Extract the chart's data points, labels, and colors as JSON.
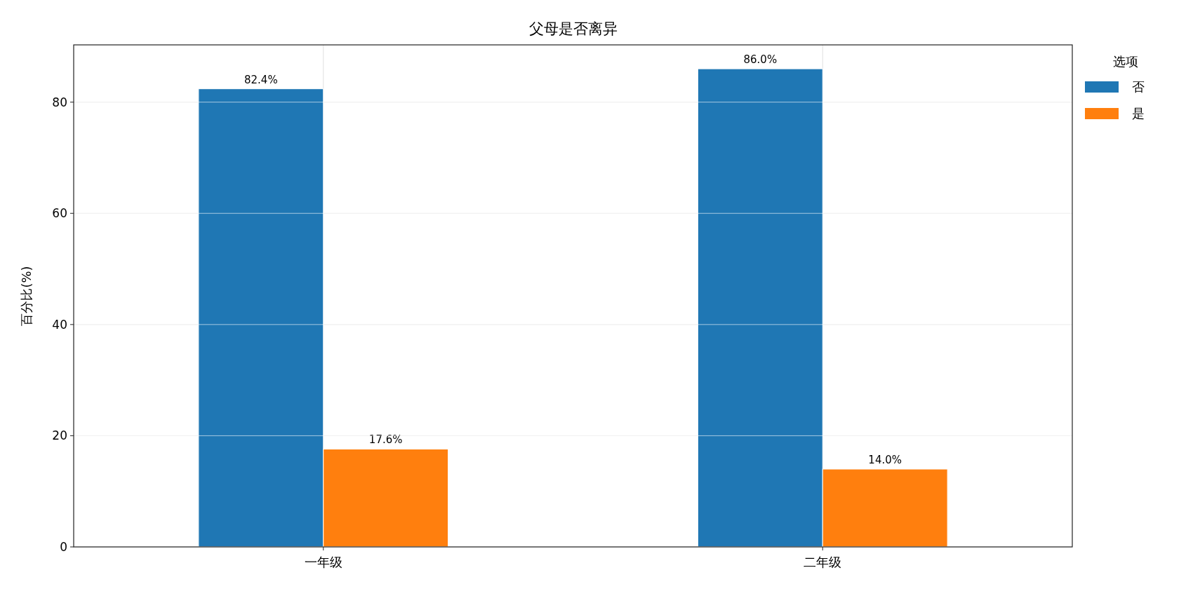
{
  "chart_data": {
    "type": "bar",
    "title": "父母是否离异",
    "ylabel": "百分比(%)",
    "legend_title": "选项",
    "categories": [
      "一年级",
      "二年级"
    ],
    "series": [
      {
        "name": "否",
        "color": "#1f77b4",
        "values": [
          82.4,
          86.0
        ],
        "value_labels": [
          "82.4%",
          "86.0%"
        ]
      },
      {
        "name": "是",
        "color": "#ff7f0e",
        "values": [
          17.6,
          14.0
        ],
        "value_labels": [
          "17.6%",
          "14.0%"
        ]
      }
    ],
    "ylim": [
      0,
      90.3
    ],
    "yticks": [
      0,
      20,
      40,
      60,
      80
    ],
    "grid": true,
    "legend": "top right"
  }
}
